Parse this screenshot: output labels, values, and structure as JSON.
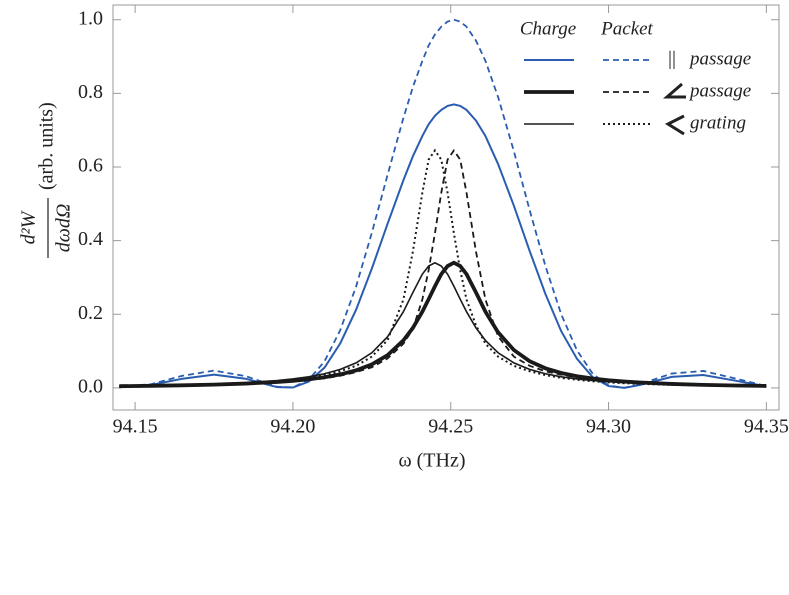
{
  "chart_data": {
    "type": "line",
    "xlabel": "ω  (THz)",
    "ylabel": {
      "numerator": "d²W",
      "denominator": "dωdΩ",
      "units": "(arb. units)"
    },
    "xlim": [
      94.143,
      94.354
    ],
    "ylim": [
      -0.06,
      1.04
    ],
    "xticks": [
      94.15,
      {
        "value": 94.2,
        "label": "94.20"
      },
      94.25,
      {
        "value": 94.3,
        "label": "94.30"
      },
      94.35
    ],
    "yticks": [
      {
        "value": 0,
        "label": "0.0"
      },
      0.2,
      0.4,
      0.6,
      0.8,
      {
        "value": 1,
        "label": "1.0"
      }
    ],
    "legend": {
      "columns": [
        "Charge",
        "Packet"
      ],
      "rows": [
        {
          "symbol": "||",
          "label": "passage"
        },
        {
          "label": "passage"
        },
        {
          "label": "grating"
        }
      ]
    },
    "x": [
      94.145,
      94.155,
      94.165,
      94.175,
      94.185,
      94.195,
      94.2,
      94.205,
      94.21,
      94.215,
      94.22,
      94.225,
      94.23,
      94.235,
      94.238,
      94.241,
      94.243,
      94.245,
      94.247,
      94.249,
      94.251,
      94.253,
      94.255,
      94.258,
      94.261,
      94.265,
      94.27,
      94.275,
      94.28,
      94.285,
      94.29,
      94.295,
      94.3,
      94.305,
      94.31,
      94.32,
      94.33,
      94.34,
      94.35
    ],
    "series": [
      {
        "color": "#2a5db0",
        "linestyle": "solid",
        "values": [
          0.002,
          0.008,
          0.025,
          0.036,
          0.025,
          0.002,
          0.001,
          0.017,
          0.055,
          0.121,
          0.212,
          0.324,
          0.446,
          0.564,
          0.629,
          0.684,
          0.716,
          0.739,
          0.755,
          0.766,
          0.77,
          0.766,
          0.755,
          0.726,
          0.684,
          0.608,
          0.495,
          0.372,
          0.255,
          0.154,
          0.079,
          0.029,
          0.005,
          0.0,
          0.008,
          0.03,
          0.035,
          0.02,
          0.004
        ]
      },
      {
        "color": "#2a5db0",
        "linestyle": "dashed",
        "values": [
          0.003,
          0.01,
          0.033,
          0.047,
          0.032,
          0.003,
          0.0015,
          0.022,
          0.072,
          0.157,
          0.275,
          0.421,
          0.579,
          0.733,
          0.817,
          0.888,
          0.93,
          0.96,
          0.981,
          0.995,
          1.0,
          0.995,
          0.981,
          0.943,
          0.888,
          0.79,
          0.643,
          0.483,
          0.331,
          0.2,
          0.102,
          0.038,
          0.0065,
          0.0003,
          0.01,
          0.039,
          0.046,
          0.026,
          0.005
        ]
      },
      {
        "color": "#1a1a1a",
        "linestyle": "bold",
        "values": [
          0.0047,
          0.0057,
          0.007,
          0.0089,
          0.0118,
          0.0161,
          0.0193,
          0.0234,
          0.0289,
          0.0366,
          0.0476,
          0.0638,
          0.089,
          0.129,
          0.163,
          0.207,
          0.241,
          0.276,
          0.309,
          0.331,
          0.34,
          0.331,
          0.309,
          0.259,
          0.207,
          0.151,
          0.103,
          0.0725,
          0.0533,
          0.0405,
          0.0317,
          0.0254,
          0.0207,
          0.0173,
          0.0146,
          0.0108,
          0.0083,
          0.0066,
          0.0053
        ]
      },
      {
        "color": "#1a1a1a",
        "linestyle": "dashed",
        "values": [
          0.0042,
          0.0051,
          0.0063,
          0.008,
          0.0106,
          0.0145,
          0.0174,
          0.0211,
          0.026,
          0.0329,
          0.0428,
          0.056,
          0.08,
          0.12,
          0.16,
          0.24,
          0.32,
          0.42,
          0.53,
          0.62,
          0.645,
          0.62,
          0.53,
          0.37,
          0.24,
          0.14,
          0.085,
          0.06,
          0.045,
          0.036,
          0.0285,
          0.0229,
          0.0186,
          0.0156,
          0.0131,
          0.0097,
          0.0075,
          0.0059,
          0.0048
        ]
      },
      {
        "color": "#1a1a1a",
        "linestyle": "solid",
        "values": [
          0.0052,
          0.0064,
          0.0081,
          0.0105,
          0.0142,
          0.02,
          0.0244,
          0.0302,
          0.0385,
          0.0503,
          0.068,
          0.0955,
          0.139,
          0.207,
          0.259,
          0.309,
          0.331,
          0.34,
          0.331,
          0.309,
          0.276,
          0.241,
          0.207,
          0.163,
          0.129,
          0.0955,
          0.068,
          0.0503,
          0.0385,
          0.0302,
          0.0244,
          0.02,
          0.0167,
          0.0142,
          0.0121,
          0.0092,
          0.0072,
          0.0058,
          0.0046
        ]
      },
      {
        "color": "#1a1a1a",
        "linestyle": "dotted",
        "values": [
          0.0047,
          0.0058,
          0.0073,
          0.0095,
          0.0128,
          0.018,
          0.022,
          0.0272,
          0.0347,
          0.0453,
          0.06,
          0.085,
          0.13,
          0.24,
          0.37,
          0.53,
          0.62,
          0.645,
          0.62,
          0.53,
          0.42,
          0.32,
          0.24,
          0.17,
          0.12,
          0.085,
          0.06,
          0.0453,
          0.0347,
          0.0272,
          0.022,
          0.018,
          0.015,
          0.0128,
          0.0109,
          0.0083,
          0.0065,
          0.0052,
          0.0041
        ]
      }
    ]
  }
}
